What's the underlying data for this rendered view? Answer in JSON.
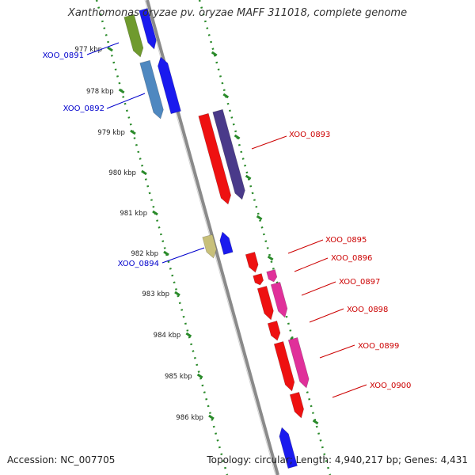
{
  "title": "Xanthomonas oryzae pv. oryzae MAFF 311018, complete genome",
  "accession_text": "Accession: NC_007705",
  "summary_text": "Topology: circular; Length: 4,940,217 bp; Genes: 4,431",
  "colors": {
    "backbone": "#8a8a8a",
    "dotted_track": "#2a8a2a",
    "forward_label": "#0000cc",
    "reverse_label": "#cc0000"
  },
  "scale_ticks": [
    "977 kbp",
    "978 kbp",
    "979 kbp",
    "980 kbp",
    "981 kbp",
    "982 kbp",
    "983 kbp",
    "984 kbp",
    "985 kbp",
    "986 kbp"
  ],
  "genes": [
    {
      "id": "XOO_0891",
      "label": "XOO_0891",
      "strand": "forward",
      "colors": [
        "#6f9a2e",
        "#1a1aee"
      ]
    },
    {
      "id": "XOO_0892",
      "label": "XOO_0892",
      "strand": "forward",
      "colors": [
        "#4f88c0",
        "#1a1aee"
      ]
    },
    {
      "id": "XOO_0893",
      "label": "XOO_0893",
      "strand": "reverse",
      "colors": [
        "#ee1111",
        "#4a3a8a"
      ]
    },
    {
      "id": "XOO_0894",
      "label": "XOO_0894",
      "strand": "forward",
      "colors": [
        "#c8c07a",
        "#1a1aee"
      ]
    },
    {
      "id": "XOO_0895",
      "label": "XOO_0895",
      "strand": "reverse",
      "colors": [
        "#ee1111"
      ]
    },
    {
      "id": "XOO_0896",
      "label": "XOO_0896",
      "strand": "reverse",
      "colors": [
        "#ee1111",
        "#e0309a"
      ]
    },
    {
      "id": "XOO_0897",
      "label": "XOO_0897",
      "strand": "reverse",
      "colors": [
        "#ee1111",
        "#e0309a"
      ]
    },
    {
      "id": "XOO_0898",
      "label": "XOO_0898",
      "strand": "reverse",
      "colors": [
        "#ee1111"
      ]
    },
    {
      "id": "XOO_0899",
      "label": "XOO_0899",
      "strand": "reverse",
      "colors": [
        "#ee1111",
        "#e0309a"
      ]
    },
    {
      "id": "XOO_0900",
      "label": "XOO_0900",
      "strand": "reverse",
      "colors": [
        "#ee1111"
      ]
    }
  ]
}
